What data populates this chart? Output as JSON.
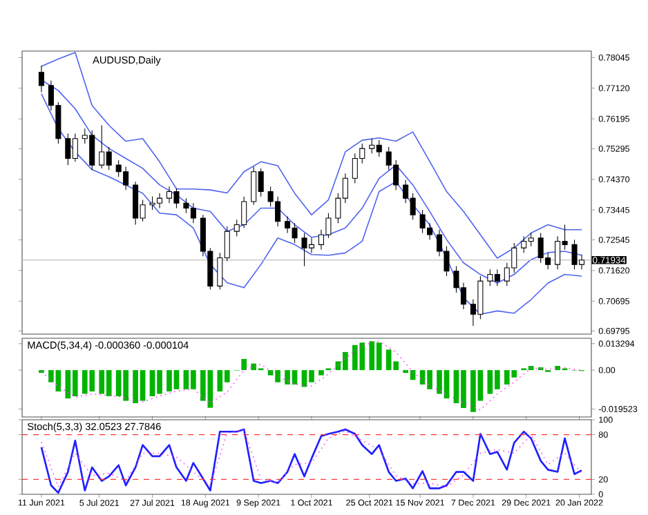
{
  "chart_data": [
    {
      "type": "candlestick",
      "title": "AUDUSD,Daily",
      "x": [
        "2021-06-11",
        "2021-06-15",
        "2021-06-18",
        "2021-06-22",
        "2021-06-25",
        "2021-06-29",
        "2021-07-02",
        "2021-07-06",
        "2021-07-09",
        "2021-07-13",
        "2021-07-16",
        "2021-07-20",
        "2021-07-23",
        "2021-07-27",
        "2021-07-30",
        "2021-08-03",
        "2021-08-06",
        "2021-08-10",
        "2021-08-13",
        "2021-08-17",
        "2021-08-20",
        "2021-08-24",
        "2021-08-27",
        "2021-08-31",
        "2021-09-03",
        "2021-09-07",
        "2021-09-10",
        "2021-09-14",
        "2021-09-17",
        "2021-09-21",
        "2021-09-24",
        "2021-09-28",
        "2021-10-01",
        "2021-10-05",
        "2021-10-08",
        "2021-10-12",
        "2021-10-15",
        "2021-10-19",
        "2021-10-22",
        "2021-10-26",
        "2021-10-29",
        "2021-11-02",
        "2021-11-05",
        "2021-11-09",
        "2021-11-12",
        "2021-11-16",
        "2021-11-19",
        "2021-11-23",
        "2021-11-26",
        "2021-11-30",
        "2021-12-03",
        "2021-12-07",
        "2021-12-10",
        "2021-12-14",
        "2021-12-17",
        "2021-12-21",
        "2021-12-24",
        "2021-12-28",
        "2021-12-31",
        "2022-01-04",
        "2022-01-07",
        "2022-01-11",
        "2022-01-14",
        "2022-01-18",
        "2022-01-21"
      ],
      "ohlc": [
        [
          0.776,
          0.778,
          0.77,
          0.772
        ],
        [
          0.772,
          0.7735,
          0.7645,
          0.766
        ],
        [
          0.766,
          0.767,
          0.7545,
          0.756
        ],
        [
          0.756,
          0.7575,
          0.748,
          0.75
        ],
        [
          0.75,
          0.7575,
          0.749,
          0.756
        ],
        [
          0.756,
          0.759,
          0.7545,
          0.757
        ],
        [
          0.757,
          0.7585,
          0.7465,
          0.748
        ],
        [
          0.748,
          0.76,
          0.747,
          0.752
        ],
        [
          0.752,
          0.7535,
          0.7465,
          0.748
        ],
        [
          0.748,
          0.7495,
          0.7445,
          0.746
        ],
        [
          0.746,
          0.7475,
          0.7405,
          0.742
        ],
        [
          0.742,
          0.743,
          0.73,
          0.732
        ],
        [
          0.732,
          0.7375,
          0.731,
          0.736
        ],
        [
          0.736,
          0.7385,
          0.7345,
          0.7365
        ],
        [
          0.7365,
          0.7395,
          0.735,
          0.738
        ],
        [
          0.738,
          0.7415,
          0.7365,
          0.74
        ],
        [
          0.74,
          0.741,
          0.735,
          0.7365
        ],
        [
          0.7365,
          0.738,
          0.7335,
          0.735
        ],
        [
          0.735,
          0.7365,
          0.7305,
          0.732
        ],
        [
          0.732,
          0.733,
          0.7205,
          0.722
        ],
        [
          0.722,
          0.723,
          0.7105,
          0.7115
        ],
        [
          0.7115,
          0.7215,
          0.7105,
          0.72
        ],
        [
          0.72,
          0.7295,
          0.719,
          0.728
        ],
        [
          0.728,
          0.7315,
          0.7265,
          0.73
        ],
        [
          0.73,
          0.7385,
          0.729,
          0.737
        ],
        [
          0.737,
          0.7475,
          0.736,
          0.746
        ],
        [
          0.746,
          0.747,
          0.7385,
          0.74
        ],
        [
          0.74,
          0.7415,
          0.7355,
          0.737
        ],
        [
          0.737,
          0.7385,
          0.7295,
          0.731
        ],
        [
          0.731,
          0.7325,
          0.7275,
          0.729
        ],
        [
          0.729,
          0.7305,
          0.7245,
          0.726
        ],
        [
          0.726,
          0.7275,
          0.7175,
          0.723
        ],
        [
          0.723,
          0.726,
          0.7215,
          0.724
        ],
        [
          0.724,
          0.7285,
          0.7225,
          0.727
        ],
        [
          0.727,
          0.7335,
          0.726,
          0.732
        ],
        [
          0.732,
          0.7395,
          0.7305,
          0.738
        ],
        [
          0.738,
          0.7455,
          0.7365,
          0.744
        ],
        [
          0.744,
          0.7515,
          0.7425,
          0.75
        ],
        [
          0.75,
          0.7545,
          0.7485,
          0.753
        ],
        [
          0.753,
          0.756,
          0.7515,
          0.754
        ],
        [
          0.754,
          0.7555,
          0.7505,
          0.752
        ],
        [
          0.752,
          0.7535,
          0.7465,
          0.748
        ],
        [
          0.748,
          0.7495,
          0.7405,
          0.742
        ],
        [
          0.742,
          0.7435,
          0.7365,
          0.738
        ],
        [
          0.738,
          0.7395,
          0.7315,
          0.733
        ],
        [
          0.733,
          0.7345,
          0.7275,
          0.729
        ],
        [
          0.729,
          0.7305,
          0.7255,
          0.727
        ],
        [
          0.727,
          0.7285,
          0.7205,
          0.722
        ],
        [
          0.722,
          0.7235,
          0.7145,
          0.716
        ],
        [
          0.716,
          0.7175,
          0.7095,
          0.711
        ],
        [
          0.711,
          0.7125,
          0.7045,
          0.706
        ],
        [
          0.706,
          0.7075,
          0.6995,
          0.703
        ],
        [
          0.703,
          0.7145,
          0.7015,
          0.713
        ],
        [
          0.713,
          0.7165,
          0.7115,
          0.715
        ],
        [
          0.715,
          0.7165,
          0.7115,
          0.713
        ],
        [
          0.713,
          0.7185,
          0.7115,
          0.717
        ],
        [
          0.717,
          0.7245,
          0.7155,
          0.723
        ],
        [
          0.723,
          0.7265,
          0.7215,
          0.725
        ],
        [
          0.725,
          0.7275,
          0.7235,
          0.726
        ],
        [
          0.726,
          0.7275,
          0.7185,
          0.72
        ],
        [
          0.72,
          0.7215,
          0.7165,
          0.718
        ],
        [
          0.718,
          0.7265,
          0.7165,
          0.725
        ],
        [
          0.725,
          0.73,
          0.7225,
          0.724
        ],
        [
          0.724,
          0.7255,
          0.7165,
          0.718
        ],
        [
          0.718,
          0.721,
          0.7165,
          0.71934
        ]
      ],
      "series": [
        {
          "type": "line",
          "color": "#4f63f0",
          "x": [
            "2021-06-11",
            "2021-06-18",
            "2021-06-25",
            "2021-07-02",
            "2021-07-09",
            "2021-07-16",
            "2021-07-23",
            "2021-07-30",
            "2021-08-06",
            "2021-08-13",
            "2021-08-20",
            "2021-08-27",
            "2021-09-03",
            "2021-09-10",
            "2021-09-17",
            "2021-09-24",
            "2021-10-01",
            "2021-10-08",
            "2021-10-15",
            "2021-10-22",
            "2021-10-29",
            "2021-11-05",
            "2021-11-12",
            "2021-11-19",
            "2021-11-26",
            "2021-12-03",
            "2021-12-10",
            "2021-12-17",
            "2021-12-24",
            "2021-12-31",
            "2022-01-07",
            "2022-01-14",
            "2022-01-21"
          ],
          "values": [
            0.7778,
            0.78,
            0.782,
            0.766,
            0.76,
            0.7552,
            0.756,
            0.749,
            0.7408,
            0.7408,
            0.7405,
            0.7396,
            0.746,
            0.749,
            0.7478,
            0.7395,
            0.733,
            0.7375,
            0.752,
            0.7555,
            0.7562,
            0.7552,
            0.758,
            0.7491,
            0.74,
            0.734,
            0.727,
            0.7199,
            0.723,
            0.7275,
            0.73,
            0.7285,
            0.7285
          ]
        },
        {
          "type": "line",
          "color": "#4f63f0",
          "x": [
            "2021-06-11",
            "2021-06-18",
            "2021-06-25",
            "2021-07-02",
            "2021-07-09",
            "2021-07-16",
            "2021-07-23",
            "2021-07-30",
            "2021-08-06",
            "2021-08-13",
            "2021-08-20",
            "2021-08-27",
            "2021-09-03",
            "2021-09-10",
            "2021-09-17",
            "2021-09-24",
            "2021-10-01",
            "2021-10-08",
            "2021-10-15",
            "2021-10-22",
            "2021-10-29",
            "2021-11-05",
            "2021-11-12",
            "2021-11-19",
            "2021-11-26",
            "2021-12-03",
            "2021-12-10",
            "2021-12-17",
            "2021-12-24",
            "2021-12-31",
            "2022-01-07",
            "2022-01-14",
            "2022-01-21"
          ],
          "values": [
            0.7737,
            0.7705,
            0.765,
            0.757,
            0.753,
            0.75,
            0.747,
            0.742,
            0.739,
            0.735,
            0.734,
            0.728,
            0.73,
            0.735,
            0.735,
            0.73,
            0.7262,
            0.727,
            0.729,
            0.735,
            0.744,
            0.748,
            0.742,
            0.734,
            0.7255,
            0.7185,
            0.715,
            0.7124,
            0.715,
            0.7195,
            0.7216,
            0.722,
            0.7208
          ]
        },
        {
          "type": "line",
          "color": "#4f63f0",
          "x": [
            "2021-06-11",
            "2021-06-18",
            "2021-06-25",
            "2021-07-02",
            "2021-07-09",
            "2021-07-16",
            "2021-07-23",
            "2021-07-30",
            "2021-08-06",
            "2021-08-13",
            "2021-08-20",
            "2021-08-27",
            "2021-09-03",
            "2021-09-10",
            "2021-09-17",
            "2021-09-24",
            "2021-10-01",
            "2021-10-08",
            "2021-10-15",
            "2021-10-22",
            "2021-10-29",
            "2021-11-05",
            "2021-11-12",
            "2021-11-19",
            "2021-11-26",
            "2021-12-03",
            "2021-12-10",
            "2021-12-17",
            "2021-12-24",
            "2021-12-31",
            "2022-01-07",
            "2022-01-14",
            "2022-01-21"
          ],
          "values": [
            0.7695,
            0.759,
            0.752,
            0.7466,
            0.7445,
            0.742,
            0.7395,
            0.7335,
            0.733,
            0.729,
            0.718,
            0.7125,
            0.711,
            0.718,
            0.726,
            0.724,
            0.721,
            0.7208,
            0.7215,
            0.725,
            0.74,
            0.743,
            0.736,
            0.73,
            0.72,
            0.708,
            0.703,
            0.704,
            0.7033,
            0.7074,
            0.7124,
            0.715,
            0.7145
          ]
        }
      ],
      "xlim": [
        "2021-06-03",
        "2022-01-25"
      ],
      "ylim": [
        0.697,
        0.7824
      ],
      "yticks": [
        0.78045,
        {
          "value": 0.7712,
          "label": "0.77120"
        },
        0.76195,
        0.75295,
        {
          "value": 0.7437,
          "label": "0.74370"
        },
        0.73445,
        0.72545,
        {
          "value": 0.7162,
          "label": "0.71620"
        },
        0.70695,
        0.69795
      ],
      "ref_lines": [
        {
          "axis": "y",
          "value": 0.71934,
          "label": "0.71934",
          "color": "#c0c0c0"
        }
      ],
      "tick_labels": "y"
    },
    {
      "type": "bar",
      "title": "MACD(5,34,4) -0.000360 -0.000104",
      "x": [
        "2021-06-11",
        "2021-06-15",
        "2021-06-18",
        "2021-06-22",
        "2021-06-25",
        "2021-06-29",
        "2021-07-02",
        "2021-07-06",
        "2021-07-09",
        "2021-07-13",
        "2021-07-16",
        "2021-07-20",
        "2021-07-23",
        "2021-07-27",
        "2021-07-30",
        "2021-08-03",
        "2021-08-06",
        "2021-08-10",
        "2021-08-13",
        "2021-08-17",
        "2021-08-20",
        "2021-08-24",
        "2021-08-27",
        "2021-08-31",
        "2021-09-03",
        "2021-09-07",
        "2021-09-10",
        "2021-09-14",
        "2021-09-17",
        "2021-09-21",
        "2021-09-24",
        "2021-09-28",
        "2021-10-01",
        "2021-10-05",
        "2021-10-08",
        "2021-10-12",
        "2021-10-15",
        "2021-10-19",
        "2021-10-22",
        "2021-10-26",
        "2021-10-29",
        "2021-11-02",
        "2021-11-05",
        "2021-11-09",
        "2021-11-12",
        "2021-11-16",
        "2021-11-19",
        "2021-11-23",
        "2021-11-26",
        "2021-11-30",
        "2021-12-03",
        "2021-12-07",
        "2021-12-10",
        "2021-12-14",
        "2021-12-17",
        "2021-12-21",
        "2021-12-24",
        "2021-12-28",
        "2021-12-31",
        "2022-01-04",
        "2022-01-07",
        "2022-01-11",
        "2022-01-14",
        "2022-01-18",
        "2022-01-21"
      ],
      "series": [
        {
          "color": "#00b400",
          "values": [
            -0.0014,
            -0.0061,
            -0.0107,
            -0.0142,
            -0.0131,
            -0.0119,
            -0.0107,
            -0.0119,
            -0.0131,
            -0.0131,
            -0.0154,
            -0.0166,
            -0.0154,
            -0.0131,
            -0.0119,
            -0.0107,
            -0.0096,
            -0.0096,
            -0.0096,
            -0.0154,
            -0.0189,
            -0.0107,
            -0.0061,
            -0.0002,
            0.0056,
            0.0033,
            0.0009,
            -0.0026,
            -0.0061,
            -0.0072,
            -0.0072,
            -0.0084,
            -0.0061,
            -0.0026,
            0.0009,
            0.0044,
            0.0091,
            0.0126,
            0.0138,
            0.0145,
            0.0138,
            0.0103,
            0.0044,
            -0.0014,
            -0.0049,
            -0.0072,
            -0.0096,
            -0.0119,
            -0.0142,
            -0.0166,
            -0.019,
            -0.021,
            -0.0154,
            -0.0119,
            -0.0096,
            -0.0072,
            -0.0037,
            0.0009,
            0.0021,
            0.0014,
            -0.0009,
            0.0021,
            0.0009,
            -0.0002,
            -0.0004
          ]
        },
        {
          "type": "line",
          "color": "#ff40ff",
          "line_style": "dotted",
          "x": [
            "2021-06-11",
            "2021-06-18",
            "2021-06-25",
            "2021-07-02",
            "2021-07-09",
            "2021-07-16",
            "2021-07-23",
            "2021-07-30",
            "2021-08-06",
            "2021-08-13",
            "2021-08-20",
            "2021-08-27",
            "2021-09-03",
            "2021-09-10",
            "2021-09-17",
            "2021-09-24",
            "2021-10-01",
            "2021-10-08",
            "2021-10-15",
            "2021-10-22",
            "2021-10-29",
            "2021-11-05",
            "2021-11-12",
            "2021-11-19",
            "2021-11-26",
            "2021-12-03",
            "2021-12-10",
            "2021-12-17",
            "2021-12-24",
            "2021-12-31",
            "2022-01-07",
            "2022-01-14",
            "2022-01-21"
          ],
          "values": [
            -0.001,
            -0.008,
            -0.0135,
            -0.012,
            -0.0125,
            -0.014,
            -0.016,
            -0.013,
            -0.0105,
            -0.0095,
            -0.0165,
            -0.011,
            0.0,
            0.003,
            -0.003,
            -0.007,
            -0.008,
            -0.002,
            0.006,
            0.0125,
            0.0145,
            0.009,
            -0.001,
            -0.008,
            -0.012,
            -0.0165,
            -0.02,
            -0.012,
            -0.006,
            0.001,
            0.0005,
            0.0012,
            -0.0001
          ]
        }
      ],
      "xlim": [
        "2021-06-03",
        "2022-01-25"
      ],
      "ylim": [
        -0.0235,
        0.016
      ],
      "yticks": [
        0.013294,
        {
          "value": 0,
          "label": "0.00"
        },
        -0.019523
      ],
      "tick_labels": "y"
    },
    {
      "type": "line",
      "title": "Stoch(5,3,3) 32.0523 27.7846",
      "x": [
        "2021-06-11",
        "2021-06-15",
        "2021-06-18",
        "2021-06-22",
        "2021-06-25",
        "2021-06-29",
        "2021-07-02",
        "2021-07-06",
        "2021-07-09",
        "2021-07-13",
        "2021-07-16",
        "2021-07-20",
        "2021-07-23",
        "2021-07-27",
        "2021-07-30",
        "2021-08-03",
        "2021-08-06",
        "2021-08-10",
        "2021-08-13",
        "2021-08-17",
        "2021-08-20",
        "2021-08-24",
        "2021-08-27",
        "2021-08-31",
        "2021-09-03",
        "2021-09-07",
        "2021-09-10",
        "2021-09-14",
        "2021-09-17",
        "2021-09-21",
        "2021-09-24",
        "2021-09-28",
        "2021-10-01",
        "2021-10-05",
        "2021-10-08",
        "2021-10-12",
        "2021-10-15",
        "2021-10-19",
        "2021-10-22",
        "2021-10-26",
        "2021-10-29",
        "2021-11-02",
        "2021-11-05",
        "2021-11-09",
        "2021-11-12",
        "2021-11-16",
        "2021-11-19",
        "2021-11-23",
        "2021-11-26",
        "2021-11-30",
        "2021-12-03",
        "2021-12-07",
        "2021-12-10",
        "2021-12-14",
        "2021-12-17",
        "2021-12-21",
        "2021-12-24",
        "2021-12-28",
        "2021-12-31",
        "2022-01-04",
        "2022-01-07",
        "2022-01-11",
        "2022-01-14",
        "2022-01-18",
        "2022-01-21"
      ],
      "series": [
        {
          "color": "#2020ff",
          "values": [
            63,
            12,
            2,
            30,
            72,
            5,
            36,
            18,
            24,
            39,
            12,
            36,
            66,
            51,
            51,
            66,
            36,
            18,
            42,
            21,
            5,
            84,
            84,
            84,
            87,
            18,
            15,
            18,
            15,
            30,
            54,
            24,
            48,
            78,
            81,
            84,
            87,
            81,
            66,
            54,
            66,
            30,
            18,
            21,
            8,
            31,
            8,
            8,
            12,
            30,
            30,
            18,
            81,
            54,
            57,
            33,
            69,
            84,
            75,
            45,
            33,
            30,
            75,
            27,
            32
          ]
        },
        {
          "color": "#ff40ff",
          "line_style": "dotted",
          "x": [
            "2021-06-11",
            "2021-06-18",
            "2021-06-25",
            "2021-07-02",
            "2021-07-09",
            "2021-07-16",
            "2021-07-23",
            "2021-07-30",
            "2021-08-06",
            "2021-08-13",
            "2021-08-20",
            "2021-08-27",
            "2021-09-03",
            "2021-09-10",
            "2021-09-17",
            "2021-09-24",
            "2021-10-01",
            "2021-10-08",
            "2021-10-15",
            "2021-10-22",
            "2021-10-29",
            "2021-11-05",
            "2021-11-12",
            "2021-11-19",
            "2021-11-26",
            "2021-12-03",
            "2021-12-10",
            "2021-12-17",
            "2021-12-24",
            "2021-12-31",
            "2022-01-07",
            "2022-01-14",
            "2022-01-21"
          ],
          "values": [
            70,
            10,
            55,
            25,
            28,
            18,
            55,
            55,
            50,
            30,
            12,
            82,
            86,
            20,
            16,
            40,
            42,
            75,
            85,
            72,
            60,
            25,
            14,
            15,
            10,
            26,
            55,
            60,
            55,
            80,
            40,
            55,
            28
          ]
        }
      ],
      "xlim": [
        "2021-06-03",
        "2022-01-25"
      ],
      "ylim": [
        0,
        100
      ],
      "yticks": [
        100,
        80,
        20,
        0
      ],
      "xticks": [
        {
          "value": "2021-06-11",
          "label": "11 Jun 2021"
        },
        {
          "value": "2021-07-05",
          "label": "5 Jul 2021"
        },
        {
          "value": "2021-07-27",
          "label": "27 Jul 2021"
        },
        {
          "value": "2021-08-18",
          "label": "18 Aug 2021"
        },
        {
          "value": "2021-09-09",
          "label": "9 Sep 2021"
        },
        {
          "value": "2021-10-01",
          "label": "1 Oct 2021"
        },
        {
          "value": "2021-10-25",
          "label": "25 Oct 2021"
        },
        {
          "value": "2021-11-15",
          "label": "15 Nov 2021"
        },
        {
          "value": "2021-12-07",
          "label": "7 Dec 2021"
        },
        {
          "value": "2021-12-29",
          "label": "29 Dec 2021"
        },
        {
          "value": "2022-01-20",
          "label": "20 Jan 2022"
        }
      ],
      "ref_lines": [
        {
          "axis": "y",
          "value": 80,
          "color": "#ff3030",
          "line_style": "dashed"
        },
        {
          "axis": "y",
          "value": 20,
          "color": "#ff3030",
          "line_style": "dashed"
        }
      ]
    }
  ]
}
